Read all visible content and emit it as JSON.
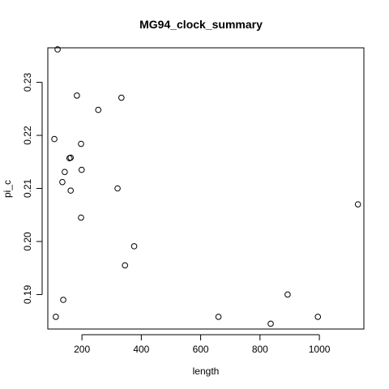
{
  "chart_data": {
    "type": "scatter",
    "title": "MG94_clock_summary",
    "xlabel": "length",
    "ylabel": "pi_c",
    "xlim": [
      85,
      1150
    ],
    "ylim": [
      0.1835,
      0.2365
    ],
    "x_ticks": [
      200,
      400,
      600,
      800,
      1000
    ],
    "y_ticks": [
      0.19,
      0.2,
      0.21,
      0.22,
      0.23
    ],
    "x_tick_labels": [
      "200",
      "400",
      "600",
      "800",
      "1000"
    ],
    "y_tick_labels": [
      "0.19",
      "0.20",
      "0.21",
      "0.22",
      "0.23"
    ],
    "grid": false,
    "marker": "open-circle",
    "points": [
      {
        "x": 118,
        "y": 0.2362
      },
      {
        "x": 183,
        "y": 0.2275
      },
      {
        "x": 333,
        "y": 0.2271
      },
      {
        "x": 255,
        "y": 0.2248
      },
      {
        "x": 107,
        "y": 0.2193
      },
      {
        "x": 197,
        "y": 0.2184
      },
      {
        "x": 158,
        "y": 0.2157
      },
      {
        "x": 162,
        "y": 0.2158
      },
      {
        "x": 142,
        "y": 0.2131
      },
      {
        "x": 199,
        "y": 0.2135
      },
      {
        "x": 134,
        "y": 0.2112
      },
      {
        "x": 162,
        "y": 0.2096
      },
      {
        "x": 320,
        "y": 0.21
      },
      {
        "x": 197,
        "y": 0.2045
      },
      {
        "x": 1130,
        "y": 0.207
      },
      {
        "x": 376,
        "y": 0.1991
      },
      {
        "x": 345,
        "y": 0.1955
      },
      {
        "x": 893,
        "y": 0.19
      },
      {
        "x": 137,
        "y": 0.189
      },
      {
        "x": 112,
        "y": 0.1858
      },
      {
        "x": 660,
        "y": 0.1858
      },
      {
        "x": 995,
        "y": 0.1858
      },
      {
        "x": 836,
        "y": 0.1845
      }
    ]
  }
}
